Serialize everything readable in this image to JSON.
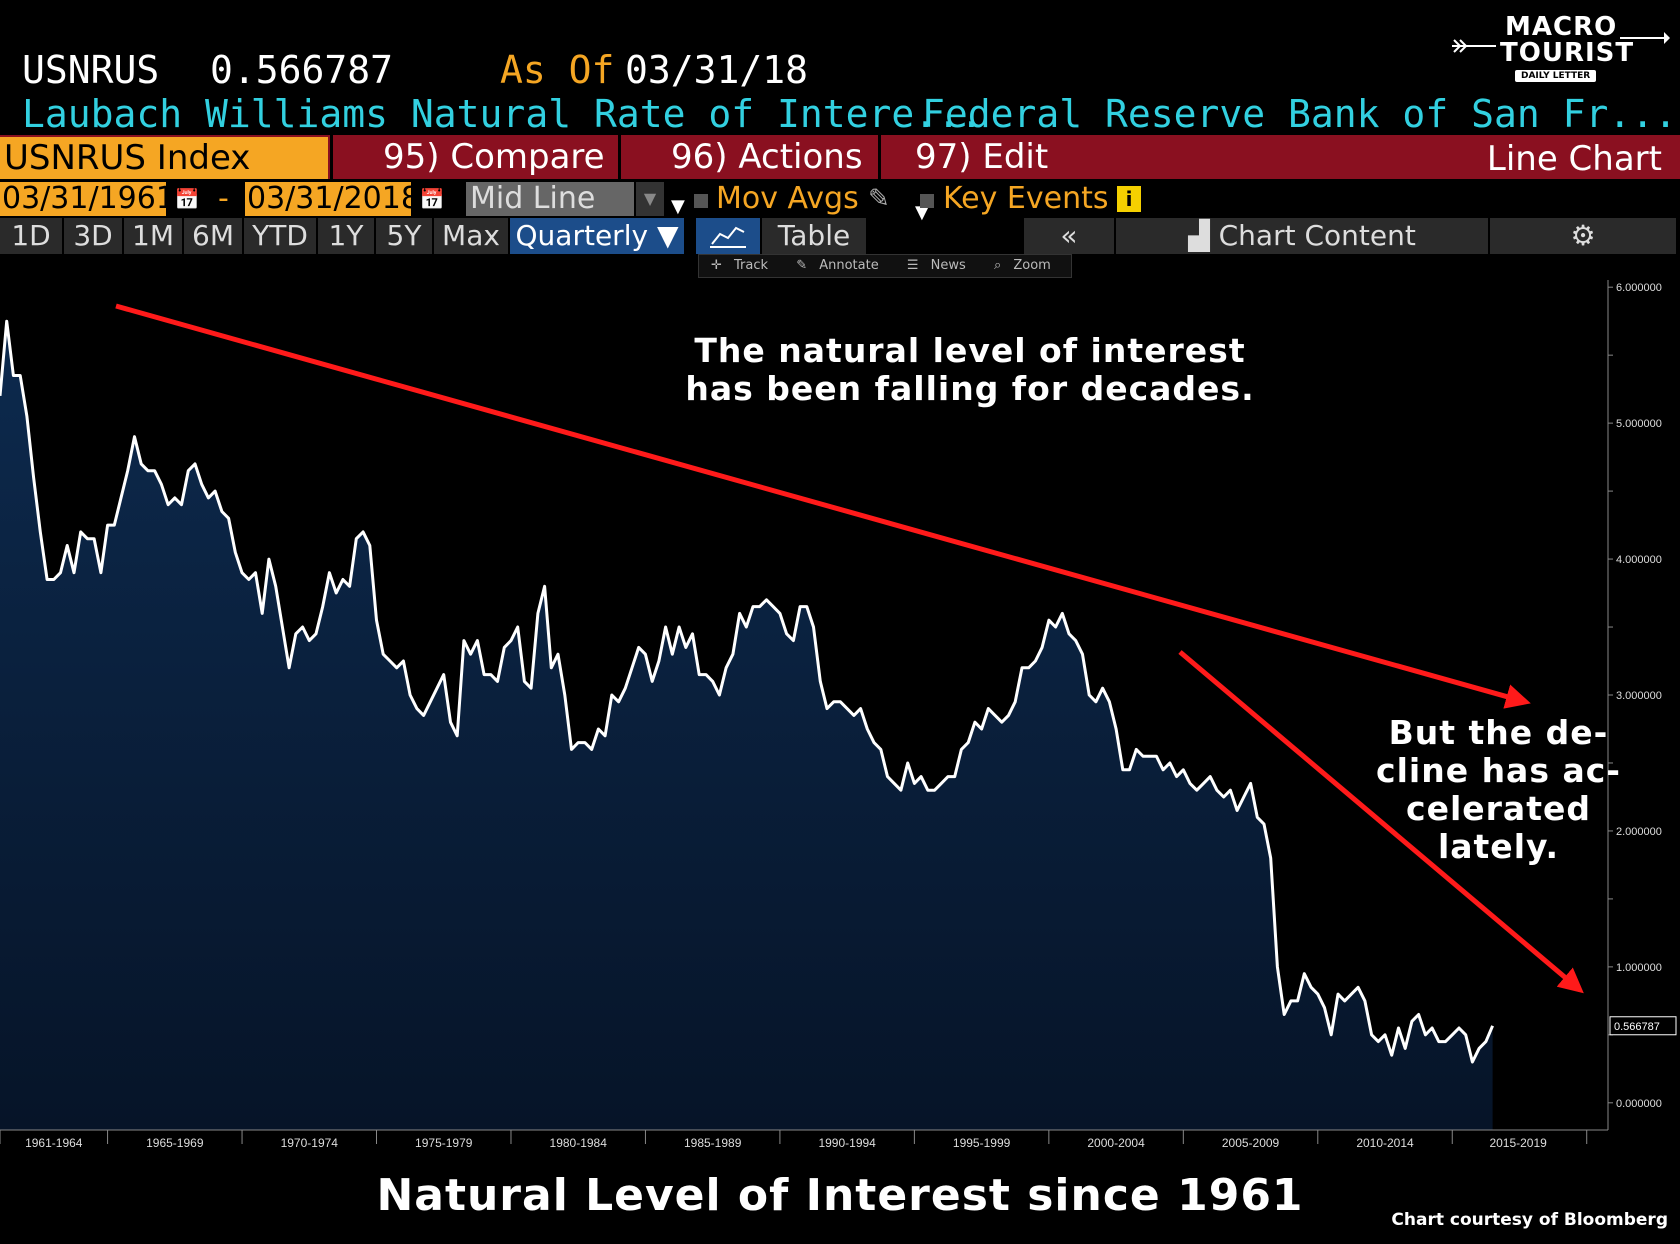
{
  "header": {
    "ticker": "USNRUS",
    "value": "0.566787",
    "as_of_label": "As Of",
    "as_of_date": "03/31/18",
    "index_name": "Laubach Williams Natural Rate of Intere...",
    "source": "Federal Reserve Bank of San Fr..."
  },
  "logo": {
    "line1": "MACRO",
    "line2": "TOURIST",
    "line3": "DAILY LETTER"
  },
  "toolbar": {
    "index_label": "USNRUS Index",
    "compare": "95) Compare",
    "actions": "96) Actions",
    "edit": "97) Edit",
    "chart_type": "Line Chart"
  },
  "range": {
    "start": "03/31/1961",
    "separator": "-",
    "end": "03/31/2018",
    "style": "Mid Line",
    "mov_avgs": "Mov Avgs",
    "key_events": "Key Events"
  },
  "periods": [
    "1D",
    "3D",
    "1M",
    "6M",
    "YTD",
    "1Y",
    "5Y",
    "Max"
  ],
  "frequency": "Quarterly ▼",
  "table_label": "Table",
  "collapse_label": "«",
  "chart_content_label": "Chart Content",
  "chart_tools": [
    "Track",
    "Annotate",
    "News",
    "Zoom"
  ],
  "annotations": {
    "top_line1": "The natural level of interest",
    "top_line2": "has been falling for decades.",
    "right_line1": "But the de-",
    "right_line2": "cline has ac-",
    "right_line3": "celerated",
    "right_line4": "lately."
  },
  "caption": "Natural Level of Interest since 1961",
  "credit": "Chart courtesy of Bloomberg",
  "colors": {
    "line": "#ffffff",
    "area_top": "#0d2a4e",
    "area_bottom": "#061428",
    "arrow": "#ff1a1a",
    "orange": "#f5a623",
    "cyan": "#32d0e0"
  },
  "chart_data": {
    "type": "area",
    "title": "",
    "xlabel": "",
    "ylabel": "",
    "ylim": [
      -0.2,
      6.2
    ],
    "xlim": [
      1961.0,
      2019.75
    ],
    "y_ticks": [
      "6.000000",
      "5.000000",
      "4.000000",
      "3.000000",
      "2.000000",
      "1.000000",
      "0.000000"
    ],
    "y_tick_values": [
      6,
      5,
      4,
      3,
      2,
      1,
      0
    ],
    "x_tick_labels": [
      "1961-1964",
      "1965-1969",
      "1970-1974",
      "1975-1979",
      "1980-1984",
      "1985-1989",
      "1990-1994",
      "1995-1999",
      "2000-2004",
      "2005-2009",
      "2010-2014",
      "2015-2019"
    ],
    "last_value_label": "0.566787",
    "series": [
      {
        "x_start": 1961.0,
        "step": 0.25,
        "values": [
          5.2,
          5.75,
          5.35,
          5.35,
          5.05,
          4.6,
          4.2,
          3.85,
          3.85,
          3.9,
          4.1,
          3.9,
          4.2,
          4.15,
          4.15,
          3.9,
          4.25,
          4.25,
          4.45,
          4.65,
          4.9,
          4.7,
          4.65,
          4.65,
          4.55,
          4.4,
          4.45,
          4.4,
          4.65,
          4.7,
          4.55,
          4.45,
          4.5,
          4.35,
          4.3,
          4.05,
          3.9,
          3.85,
          3.9,
          3.6,
          4.0,
          3.8,
          3.5,
          3.2,
          3.45,
          3.5,
          3.4,
          3.45,
          3.65,
          3.9,
          3.75,
          3.85,
          3.8,
          4.15,
          4.2,
          4.1,
          3.55,
          3.3,
          3.25,
          3.2,
          3.25,
          3.0,
          2.9,
          2.85,
          2.95,
          3.05,
          3.15,
          2.8,
          2.7,
          3.4,
          3.3,
          3.4,
          3.15,
          3.15,
          3.1,
          3.35,
          3.4,
          3.5,
          3.1,
          3.05,
          3.6,
          3.8,
          3.2,
          3.3,
          3.0,
          2.6,
          2.65,
          2.65,
          2.6,
          2.75,
          2.7,
          3.0,
          2.95,
          3.05,
          3.2,
          3.35,
          3.3,
          3.1,
          3.25,
          3.5,
          3.3,
          3.5,
          3.35,
          3.45,
          3.15,
          3.15,
          3.1,
          3.0,
          3.2,
          3.3,
          3.6,
          3.5,
          3.65,
          3.65,
          3.7,
          3.65,
          3.6,
          3.45,
          3.4,
          3.65,
          3.65,
          3.5,
          3.1,
          2.9,
          2.95,
          2.95,
          2.9,
          2.85,
          2.9,
          2.75,
          2.65,
          2.6,
          2.4,
          2.35,
          2.3,
          2.5,
          2.35,
          2.4,
          2.3,
          2.3,
          2.35,
          2.4,
          2.4,
          2.6,
          2.65,
          2.8,
          2.75,
          2.9,
          2.85,
          2.8,
          2.85,
          2.95,
          3.2,
          3.2,
          3.25,
          3.35,
          3.55,
          3.5,
          3.6,
          3.45,
          3.4,
          3.3,
          3.0,
          2.95,
          3.05,
          2.95,
          2.75,
          2.45,
          2.45,
          2.6,
          2.55,
          2.55,
          2.55,
          2.45,
          2.5,
          2.4,
          2.45,
          2.35,
          2.3,
          2.35,
          2.4,
          2.3,
          2.25,
          2.3,
          2.15,
          2.25,
          2.35,
          2.1,
          2.05,
          1.8,
          1.0,
          0.65,
          0.75,
          0.75,
          0.95,
          0.85,
          0.8,
          0.7,
          0.5,
          0.8,
          0.75,
          0.8,
          0.85,
          0.75,
          0.5,
          0.45,
          0.5,
          0.35,
          0.55,
          0.4,
          0.6,
          0.65,
          0.5,
          0.55,
          0.45,
          0.45,
          0.5,
          0.55,
          0.5,
          0.3,
          0.4,
          0.45,
          0.566787
        ]
      }
    ]
  }
}
